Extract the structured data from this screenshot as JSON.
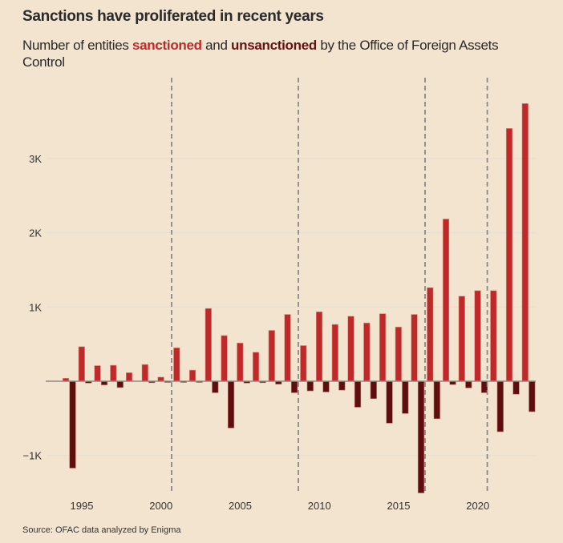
{
  "title": "Sanctions have proliferated in recent years",
  "subtitle": {
    "prefix": "Number of entities ",
    "sanctioned": "sanctioned",
    "middle": " and ",
    "unsanctioned": "unsanctioned",
    "suffix": " by the Office of Foreign Assets Control"
  },
  "source": "Source: OFAC data analyzed by Enigma",
  "colors": {
    "sanctioned": "#c0292a",
    "unsanctioned": "#5e0e0e",
    "background": "#f2e4cf",
    "gridline": "#e2ddd4",
    "baseline": "#8c8a82",
    "divider": "#8a8a8a"
  },
  "chart_data": {
    "type": "bar",
    "title": "Sanctions have proliferated in recent years",
    "xlabel": "",
    "ylabel": "Number of entities",
    "ylim": [
      -1500,
      3800
    ],
    "xlim": [
      1993,
      2024
    ],
    "grid": true,
    "y_ticks": [
      {
        "value": 3000,
        "label": "3K"
      },
      {
        "value": 2000,
        "label": "2K"
      },
      {
        "value": 1000,
        "label": "1K"
      },
      {
        "value": -1000,
        "label": "−1K"
      }
    ],
    "x_ticks": [
      {
        "value": 1995,
        "label": "1995"
      },
      {
        "value": 2000,
        "label": "2000"
      },
      {
        "value": 2005,
        "label": "2005"
      },
      {
        "value": 2010,
        "label": "2010"
      },
      {
        "value": 2015,
        "label": "2015"
      },
      {
        "value": 2020,
        "label": "2020"
      }
    ],
    "dividers": [
      2000.67,
      2008.67,
      2016.67,
      2020.6
    ],
    "x": [
      1994,
      1995,
      1996,
      1997,
      1998,
      1999,
      2000,
      2001,
      2002,
      2003,
      2004,
      2005,
      2006,
      2007,
      2008,
      2009,
      2010,
      2011,
      2012,
      2013,
      2014,
      2015,
      2016,
      2017,
      2018,
      2019,
      2020,
      2021,
      2022,
      2023
    ],
    "series": [
      {
        "name": "sanctioned",
        "values": [
          40,
          465,
          210,
          215,
          115,
          225,
          55,
          450,
          150,
          980,
          615,
          515,
          390,
          685,
          900,
          480,
          935,
          765,
          875,
          785,
          910,
          730,
          900,
          1260,
          2185,
          1145,
          1220,
          1220,
          3405,
          3740
        ]
      },
      {
        "name": "unsanctioned",
        "values": [
          -1170,
          -25,
          -50,
          -85,
          0,
          -20,
          -10,
          -10,
          -5,
          -155,
          -630,
          -25,
          -20,
          -40,
          -155,
          -130,
          -145,
          -120,
          -350,
          -235,
          -565,
          -435,
          -1505,
          -505,
          -45,
          -90,
          -155,
          -680,
          -175,
          -410
        ]
      }
    ]
  }
}
